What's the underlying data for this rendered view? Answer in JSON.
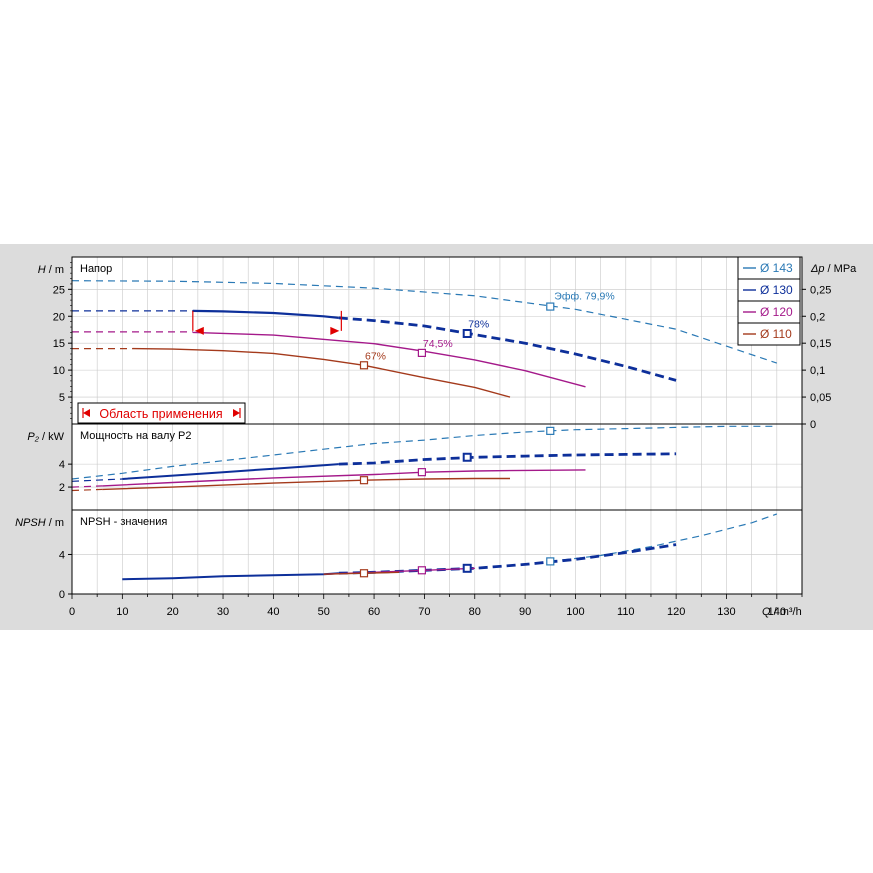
{
  "colors": {
    "background": "#dcdcdc",
    "plot_bg": "#ffffff",
    "grid": "#c8c8c8",
    "axis": "#000000",
    "d143": "#2a79b5",
    "d130": "#0d2f9a",
    "d120": "#a4198a",
    "d110": "#a43a1c",
    "range": "#e00000"
  },
  "chart_data": {
    "type": "line",
    "x_axis": {
      "label": "Q / m³/h",
      "label_prefix": "Q",
      "label_unit": " / m³/h",
      "range": [
        0,
        145
      ],
      "ticks": [
        0,
        10,
        20,
        30,
        40,
        50,
        60,
        70,
        80,
        90,
        100,
        110,
        120,
        130,
        140
      ]
    },
    "legend": {
      "placement": "top-right",
      "entries": [
        {
          "key": "d143",
          "label": "Ø 143"
        },
        {
          "key": "d130",
          "label": "Ø 130"
        },
        {
          "key": "d120",
          "label": "Ø 120"
        },
        {
          "key": "d110",
          "label": "Ø 110"
        }
      ]
    },
    "panels": [
      {
        "id": "head",
        "title": "Напор",
        "y_label": "H / m",
        "y_label_prefix": "H",
        "y_label_unit": " / m",
        "y_range": [
          0,
          31
        ],
        "y_ticks": [
          5,
          10,
          15,
          20,
          25
        ],
        "right_axis": {
          "label": "Δp / MPa",
          "label_prefix": "Δp",
          "label_unit": " / MPa",
          "range": [
            0,
            0.31
          ],
          "ticks": [
            0,
            0.05,
            0.1,
            0.15,
            0.2,
            0.25
          ],
          "tick_labels": [
            "0",
            "0,05",
            "0,1",
            "0,15",
            "0,2",
            "0,25"
          ]
        },
        "series": [
          {
            "key": "d143",
            "style": "dashed",
            "width": 1.2,
            "x": [
              0,
              20,
              40,
              60,
              80,
              100,
              120,
              140
            ],
            "y": [
              26.6,
              26.5,
              26.1,
              25.2,
              23.8,
              21.3,
              17.6,
              11.3
            ]
          },
          {
            "key": "d130",
            "style": "dashed",
            "width": 1.2,
            "x": [
              0,
              24
            ],
            "y": [
              21.0,
              21.0
            ]
          },
          {
            "key": "d130",
            "style": "solid",
            "width": 2.2,
            "x": [
              24,
              30,
              40,
              50,
              53
            ],
            "y": [
              21.0,
              20.9,
              20.6,
              20.0,
              19.7
            ]
          },
          {
            "key": "d130",
            "style": "dashed",
            "width": 2.8,
            "x": [
              53,
              60,
              70,
              80,
              90,
              100,
              110,
              120
            ],
            "y": [
              19.7,
              19.2,
              18.2,
              16.6,
              15.0,
              13.0,
              10.7,
              8.1
            ]
          },
          {
            "key": "d120",
            "style": "dashed",
            "width": 1.2,
            "x": [
              0,
              24
            ],
            "y": [
              17.1,
              17.1
            ]
          },
          {
            "key": "d120",
            "style": "solid",
            "width": 1.4,
            "x": [
              24,
              40,
              60,
              70,
              80,
              90,
              102
            ],
            "y": [
              17.0,
              16.5,
              14.9,
              13.5,
              11.9,
              9.9,
              6.9
            ]
          },
          {
            "key": "d110",
            "style": "dashed",
            "width": 1.2,
            "x": [
              0,
              12
            ],
            "y": [
              14.0,
              14.0
            ]
          },
          {
            "key": "d110",
            "style": "solid",
            "width": 1.4,
            "x": [
              12,
              20,
              30,
              40,
              50,
              58,
              70,
              80,
              87
            ],
            "y": [
              14.0,
              13.9,
              13.6,
              13.1,
              12.0,
              10.9,
              8.6,
              6.8,
              5.0
            ]
          }
        ],
        "markers": [
          {
            "key": "d143",
            "x": 95,
            "y": 21.8,
            "label": "Эфф.  79,9%",
            "label_dx": 4,
            "label_dy": -7
          },
          {
            "key": "d130",
            "x": 78.5,
            "y": 16.8,
            "label": "78%",
            "label_dx": 1,
            "label_dy": -6
          },
          {
            "key": "d120",
            "x": 69.5,
            "y": 13.2,
            "label": "74,5%",
            "label_dx": 1,
            "label_dy": -6
          },
          {
            "key": "d110",
            "x": 58,
            "y": 10.9,
            "label": "67%",
            "label_dx": 1,
            "label_dy": -6
          }
        ],
        "operating_range": {
          "label": "Область применения",
          "q_min": 24,
          "q_max": 53.5,
          "h_top": 21.0
        }
      },
      {
        "id": "power",
        "title": "Мощность на валу P2",
        "y_label": "P₂ / kW",
        "y_label_prefix": "P₂",
        "y_label_unit": " / kW",
        "y_range": [
          0,
          7.5
        ],
        "y_ticks": [
          2,
          4
        ],
        "series": [
          {
            "key": "d143",
            "style": "dashed",
            "width": 1.2,
            "x": [
              0,
              10,
              20,
              30,
              40,
              50,
              60,
              70,
              80,
              90,
              100,
              110,
              120,
              130,
              140
            ],
            "y": [
              2.7,
              3.2,
              3.8,
              4.3,
              4.8,
              5.3,
              5.8,
              6.1,
              6.5,
              6.8,
              7.0,
              7.1,
              7.2,
              7.3,
              7.3
            ]
          },
          {
            "key": "d130",
            "style": "dashed",
            "width": 1.2,
            "x": [
              0,
              10
            ],
            "y": [
              2.5,
              2.7
            ]
          },
          {
            "key": "d130",
            "style": "solid",
            "width": 2.0,
            "x": [
              10,
              20,
              30,
              40,
              50,
              53
            ],
            "y": [
              2.7,
              3.0,
              3.3,
              3.6,
              3.9,
              4.0
            ]
          },
          {
            "key": "d130",
            "style": "dashed",
            "width": 2.8,
            "x": [
              53,
              60,
              70,
              80,
              90,
              100,
              110,
              120
            ],
            "y": [
              4.0,
              4.1,
              4.4,
              4.6,
              4.7,
              4.8,
              4.85,
              4.9
            ]
          },
          {
            "key": "d120",
            "style": "dashed",
            "width": 1.2,
            "x": [
              0,
              6
            ],
            "y": [
              2.0,
              2.1
            ]
          },
          {
            "key": "d120",
            "style": "solid",
            "width": 1.4,
            "x": [
              6,
              20,
              40,
              60,
              70,
              80,
              90,
              102
            ],
            "y": [
              2.1,
              2.4,
              2.8,
              3.1,
              3.3,
              3.4,
              3.45,
              3.5
            ]
          },
          {
            "key": "d110",
            "style": "dashed",
            "width": 1.2,
            "x": [
              0,
              6
            ],
            "y": [
              1.7,
              1.8
            ]
          },
          {
            "key": "d110",
            "style": "solid",
            "width": 1.4,
            "x": [
              6,
              20,
              40,
              58,
              70,
              80,
              87
            ],
            "y": [
              1.8,
              2.0,
              2.35,
              2.6,
              2.7,
              2.75,
              2.75
            ]
          }
        ],
        "markers": [
          {
            "key": "d143",
            "x": 95,
            "y": 6.9
          },
          {
            "key": "d130",
            "x": 78.5,
            "y": 4.6
          },
          {
            "key": "d120",
            "x": 69.5,
            "y": 3.3
          },
          {
            "key": "d110",
            "x": 58,
            "y": 2.6
          }
        ]
      },
      {
        "id": "npsh",
        "title": "NPSH - значения",
        "y_label": "NPSH / m",
        "y_label_prefix": "NPSH",
        "y_label_unit": " / m",
        "y_range": [
          0,
          8.5
        ],
        "y_ticks": [
          0,
          4
        ],
        "series": [
          {
            "key": "d143",
            "style": "dashed",
            "width": 1.2,
            "x": [
              95,
              105,
              115,
              125,
              135,
              140
            ],
            "y": [
              3.3,
              3.9,
              4.8,
              5.9,
              7.2,
              8.1
            ]
          },
          {
            "key": "d130",
            "style": "solid",
            "width": 2.0,
            "x": [
              10,
              20,
              30,
              40,
              50,
              53
            ],
            "y": [
              1.5,
              1.6,
              1.8,
              1.9,
              2.0,
              2.1
            ]
          },
          {
            "key": "d130",
            "style": "dashed",
            "width": 2.8,
            "x": [
              53,
              60,
              70,
              80,
              90,
              100,
              110,
              120
            ],
            "y": [
              2.1,
              2.2,
              2.4,
              2.6,
              3.0,
              3.5,
              4.2,
              5.0
            ]
          },
          {
            "key": "d120",
            "style": "solid",
            "width": 1.4,
            "x": [
              50,
              60,
              70,
              80
            ],
            "y": [
              2.0,
              2.2,
              2.4,
              2.6
            ]
          },
          {
            "key": "d110",
            "style": "solid",
            "width": 1.4,
            "x": [
              50,
              58,
              65
            ],
            "y": [
              2.0,
              2.1,
              2.2
            ]
          }
        ],
        "markers": [
          {
            "key": "d143",
            "x": 95,
            "y": 3.3
          },
          {
            "key": "d130",
            "x": 78.5,
            "y": 2.6
          },
          {
            "key": "d120",
            "x": 69.5,
            "y": 2.4
          },
          {
            "key": "d110",
            "x": 58,
            "y": 2.1
          }
        ]
      }
    ]
  }
}
